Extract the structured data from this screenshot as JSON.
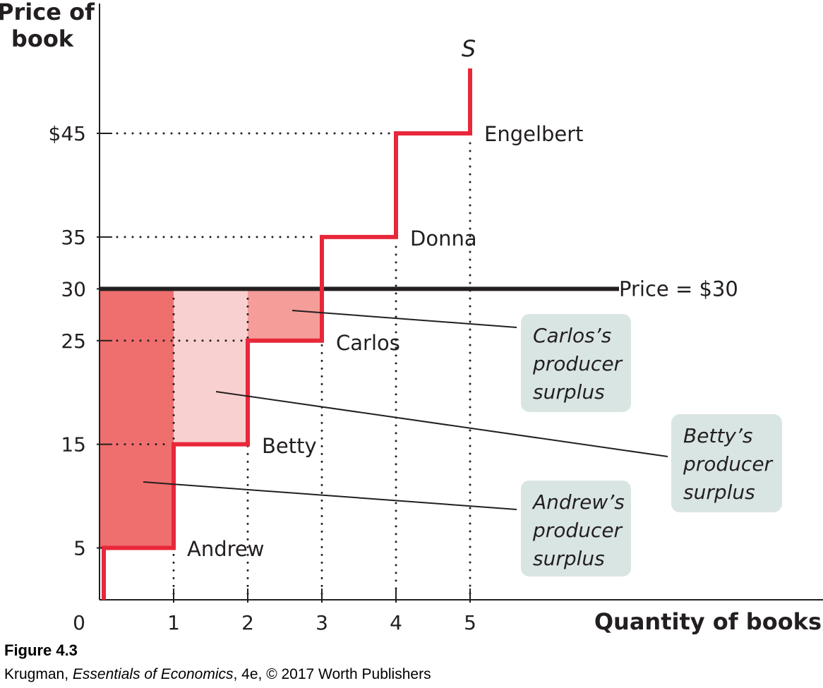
{
  "chart_data": {
    "type": "step",
    "ylabel": "Price of book",
    "xlabel": "Quantity of books",
    "origin_label": "0",
    "x_ticks": [
      "1",
      "2",
      "3",
      "4",
      "5"
    ],
    "y_ticks": [
      "$45",
      "35",
      "30",
      "25",
      "15",
      "5"
    ],
    "y_tick_values": [
      45,
      35,
      30,
      25,
      15,
      5
    ],
    "xlim": [
      0,
      5
    ],
    "supply_curve": {
      "name": "S",
      "color": "#e8273a",
      "sellers": [
        {
          "name": "Andrew",
          "cost": 5
        },
        {
          "name": "Betty",
          "cost": 15
        },
        {
          "name": "Carlos",
          "cost": 25
        },
        {
          "name": "Donna",
          "cost": 35
        },
        {
          "name": "Engelbert",
          "cost": 45
        }
      ]
    },
    "price_line": {
      "value": 30,
      "label": "Price = $30",
      "color": "#231f20"
    },
    "surplus_areas": [
      {
        "seller": "Andrew",
        "from_q": 0,
        "to_q": 1,
        "cost": 5,
        "color": "#ef6e6e",
        "callout": [
          "Andrew’s",
          "producer",
          "surplus"
        ]
      },
      {
        "seller": "Betty",
        "from_q": 1,
        "to_q": 2,
        "cost": 15,
        "color": "#f9d0d0",
        "callout": [
          "Betty’s",
          "producer",
          "surplus"
        ]
      },
      {
        "seller": "Carlos",
        "from_q": 2,
        "to_q": 3,
        "cost": 25,
        "color": "#f59d99",
        "callout": [
          "Carlos’s",
          "producer",
          "surplus"
        ]
      }
    ],
    "callout_box_color": "#d9e5e3",
    "grid": false
  },
  "caption": {
    "figure": "Figure 4.3",
    "author": "Krugman, ",
    "book": "Essentials of Economics",
    "rest": ", 4e, © 2017 Worth Publishers"
  }
}
